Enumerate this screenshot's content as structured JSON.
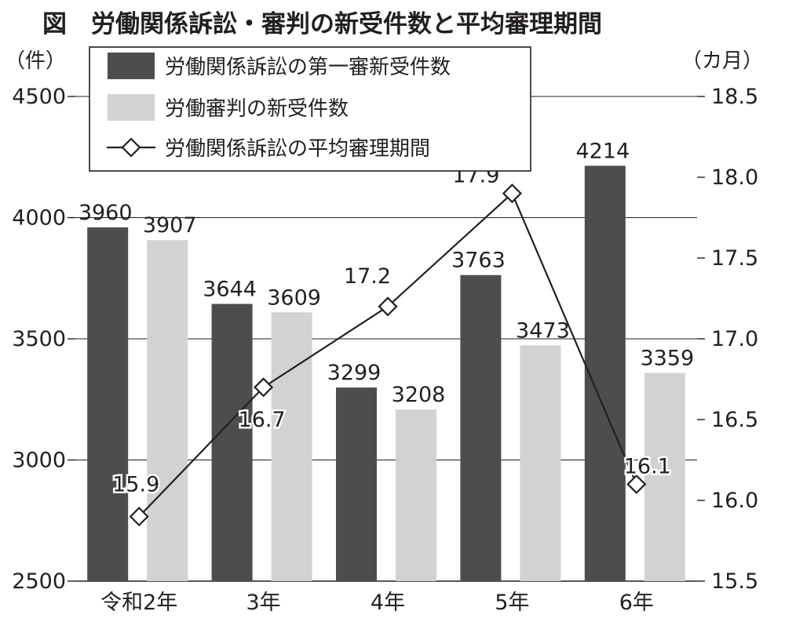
{
  "chart_data": {
    "type": "bar",
    "title": "図　労働関係訴訟・審判の新受件数と平均審理期間",
    "categories": [
      "令和2年",
      "3年",
      "4年",
      "5年",
      "6年"
    ],
    "series": [
      {
        "name": "労働関係訴訟の第一審新受件数",
        "type": "bar",
        "axis": "left",
        "color": "#4d4d4f",
        "values": [
          3960,
          3644,
          3299,
          3763,
          4214
        ],
        "labels": [
          "3960",
          "3644",
          "3299",
          "3763",
          "4214"
        ]
      },
      {
        "name": "労働審判の新受件数",
        "type": "bar",
        "axis": "left",
        "color": "#d1d2d4",
        "values": [
          3907,
          3609,
          3208,
          3473,
          3359
        ],
        "labels": [
          "3907",
          "3609",
          "3208",
          "3473",
          "3359"
        ]
      },
      {
        "name": "労働関係訴訟の平均審理期間",
        "type": "line",
        "axis": "right",
        "color": "#231f20",
        "marker": "diamond",
        "values": [
          15.9,
          16.7,
          17.2,
          17.9,
          16.1
        ],
        "labels": [
          "15.9",
          "16.7",
          "17.2",
          "17.9",
          "16.1"
        ]
      }
    ],
    "y_left": {
      "unit": "（件）",
      "min": 2500,
      "max": 4500,
      "ticks": [
        4500,
        4000,
        3500,
        3000,
        2500
      ],
      "tick_labels": [
        "4500",
        "4000",
        "3500",
        "3000",
        "2500"
      ]
    },
    "y_right": {
      "unit": "（カ月）",
      "min": 15.5,
      "max": 18.5,
      "ticks": [
        18.5,
        18.0,
        17.5,
        17.0,
        16.5,
        16.0,
        15.5
      ],
      "tick_labels": [
        "18.5",
        "18.0",
        "17.5",
        "17.0",
        "16.5",
        "16.0",
        "15.5"
      ]
    },
    "grid": true,
    "legend": "top-left"
  }
}
